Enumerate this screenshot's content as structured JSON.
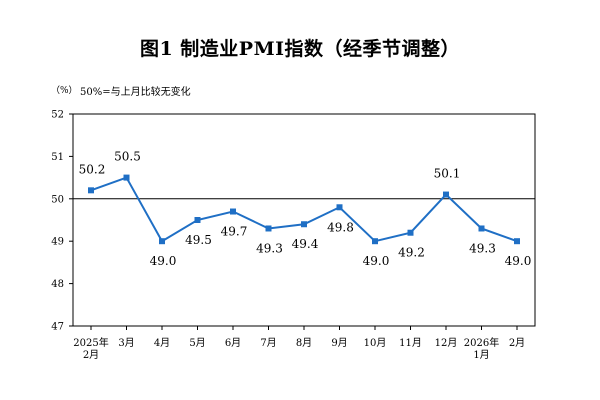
{
  "chart_data": {
    "type": "line",
    "title": "图1  制造业PMI指数（经季节调整）",
    "unit_label": "（%）",
    "note": "50%=与上月比较无变化",
    "categories": [
      [
        "2025年",
        "2月"
      ],
      [
        "3月"
      ],
      [
        "4月"
      ],
      [
        "5月"
      ],
      [
        "6月"
      ],
      [
        "7月"
      ],
      [
        "8月"
      ],
      [
        "9月"
      ],
      [
        "10月"
      ],
      [
        "11月"
      ],
      [
        "12月"
      ],
      [
        "2026年",
        "1月"
      ],
      [
        "2月"
      ]
    ],
    "values": [
      50.2,
      50.5,
      49.0,
      49.5,
      49.7,
      49.3,
      49.4,
      49.8,
      49.0,
      49.2,
      50.1,
      49.3,
      49.0
    ],
    "value_labels": [
      "50.2",
      "50.5",
      "49.0",
      "49.5",
      "49.7",
      "49.3",
      "49.4",
      "49.8",
      "49.0",
      "49.2",
      "50.1",
      "49.3",
      "49.0"
    ],
    "label_position": [
      "above",
      "above",
      "below",
      "below",
      "below",
      "below",
      "below",
      "below",
      "below",
      "below",
      "above",
      "below",
      "below"
    ],
    "ylim": [
      47,
      52
    ],
    "yticks": [
      "47",
      "48",
      "49",
      "50",
      "51",
      "52"
    ],
    "reference_line": 50,
    "grid": false,
    "colors": {
      "line": "#1f6fc5",
      "reference": "#000000",
      "frame": "#000000"
    }
  }
}
